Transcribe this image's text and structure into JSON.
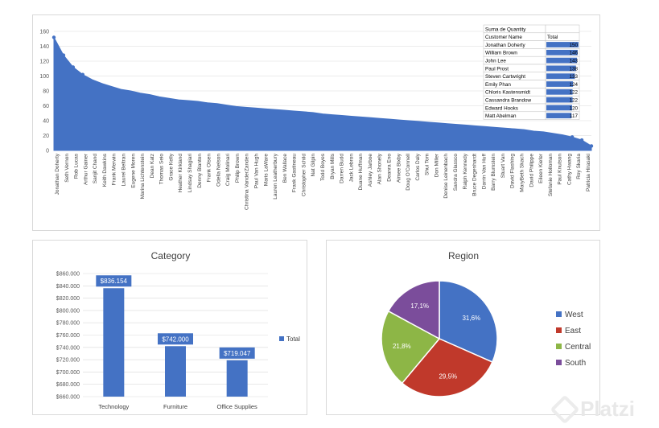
{
  "colors": {
    "primary": "#4472c4",
    "east": "#c0392b",
    "central": "#8db646",
    "south": "#7b4d9b",
    "grid": "#d9d9d9",
    "text": "#404040"
  },
  "watermark": {
    "text": "Platzi",
    "icon": "platzi-logo-icon"
  },
  "chart_data": [
    {
      "type": "area",
      "title": "",
      "ylim": [
        0,
        160
      ],
      "yticks": [
        0,
        20,
        40,
        60,
        80,
        100,
        120,
        140,
        160
      ],
      "grid": true,
      "x_labels": [
        "Jonathan Doherty",
        "Seth Vernon",
        "Rob Lucas",
        "Arthur Gainer",
        "Sanjit Chand",
        "Keith Dawkins",
        "Frank Merwin",
        "Laurel Beltran",
        "Eugene Moren",
        "Marina Lichtenstein",
        "Dean Katz",
        "Thomas Seio",
        "Grace Kelly",
        "Heather Kirkland",
        "Lindsay Shagiari",
        "Denny Blanton",
        "Frank Olsen",
        "Odella Nelson",
        "Craig Molinari",
        "Philip Brown",
        "Christina VanderZanden",
        "Paul Van Hugh",
        "Maris LaWare",
        "Lauren Leatherbury",
        "Ben Wallace",
        "Frank Gastineau",
        "Christopher Schild",
        "Nat Gilpin",
        "Todd Boyes",
        "Bryan Mills",
        "Darren Budd",
        "Jack Lebron",
        "Duane Huffman",
        "Ashley Jarboe",
        "Alan Shonely",
        "Deanra Eno",
        "Aimee Bixby",
        "Doug O'Connell",
        "Carlos Daly",
        "Shui Tom",
        "Don Miller",
        "Denise Leinenbach",
        "Sandra Glassco",
        "Ralph Kennedy",
        "Bruce Degenhardt",
        "Darrin Van Huff",
        "Barry Blumstein",
        "Stuart Van",
        "David Flashing",
        "MaryBeth Skach",
        "David Philippe",
        "Eileen Kiefer",
        "Stefanie Holloman",
        "Paul Knutson",
        "Cathy Hwang",
        "Roy Skaria",
        "Patricia Hirasaki"
      ],
      "values": [
        152,
        128,
        112,
        102,
        95,
        90,
        86,
        82,
        80,
        77,
        75,
        72,
        70,
        68,
        67,
        66,
        64,
        63,
        61,
        59,
        58,
        57,
        56,
        55,
        54,
        53,
        52,
        51,
        49,
        48,
        47,
        46,
        45,
        44,
        43,
        42,
        41,
        40,
        39,
        38,
        37,
        36,
        35,
        34,
        33,
        32,
        31,
        30,
        29,
        28,
        26,
        25,
        23,
        21,
        18,
        14,
        6
      ],
      "pivot_table": {
        "header1": "Suma de Quantity",
        "col1": "Customer Name",
        "col2": "Total",
        "rows": [
          {
            "name": "Jonathan Doherty",
            "value": 150
          },
          {
            "name": "William Brown",
            "value": 146
          },
          {
            "name": "John Lee",
            "value": 143
          },
          {
            "name": "Paul Prost",
            "value": 138
          },
          {
            "name": "Steven Cartwright",
            "value": 133
          },
          {
            "name": "Emily Phan",
            "value": 124
          },
          {
            "name": "Chloris Kastensmidt",
            "value": 122
          },
          {
            "name": "Cassandra Brandow",
            "value": 122
          },
          {
            "name": "Edward Hooks",
            "value": 120
          },
          {
            "name": "Matt Abelman",
            "value": 117
          }
        ]
      }
    },
    {
      "type": "bar",
      "title": "Category",
      "categories": [
        "Technology",
        "Furniture",
        "Office Supplies"
      ],
      "series": [
        {
          "name": "Total",
          "values": [
            836154,
            742000,
            719047
          ]
        }
      ],
      "data_labels": [
        "$836.154",
        "$742.000",
        "$719.047"
      ],
      "ylim": [
        660000,
        860000
      ],
      "yticks": [
        "$660.000",
        "$680.000",
        "$700.000",
        "$720.000",
        "$740.000",
        "$760.000",
        "$780.000",
        "$800.000",
        "$820.000",
        "$840.000",
        "$860.000"
      ],
      "grid": true,
      "legend": "right"
    },
    {
      "type": "pie",
      "title": "Region",
      "slices": [
        {
          "label": "West",
          "value": 31.6,
          "text": "31,6%",
          "color": "#4472c4"
        },
        {
          "label": "East",
          "value": 29.5,
          "text": "29,5%",
          "color": "#c0392b"
        },
        {
          "label": "Central",
          "value": 21.8,
          "text": "21,8%",
          "color": "#8db646"
        },
        {
          "label": "South",
          "value": 17.1,
          "text": "17,1%",
          "color": "#7b4d9b"
        }
      ],
      "legend": "right"
    }
  ]
}
